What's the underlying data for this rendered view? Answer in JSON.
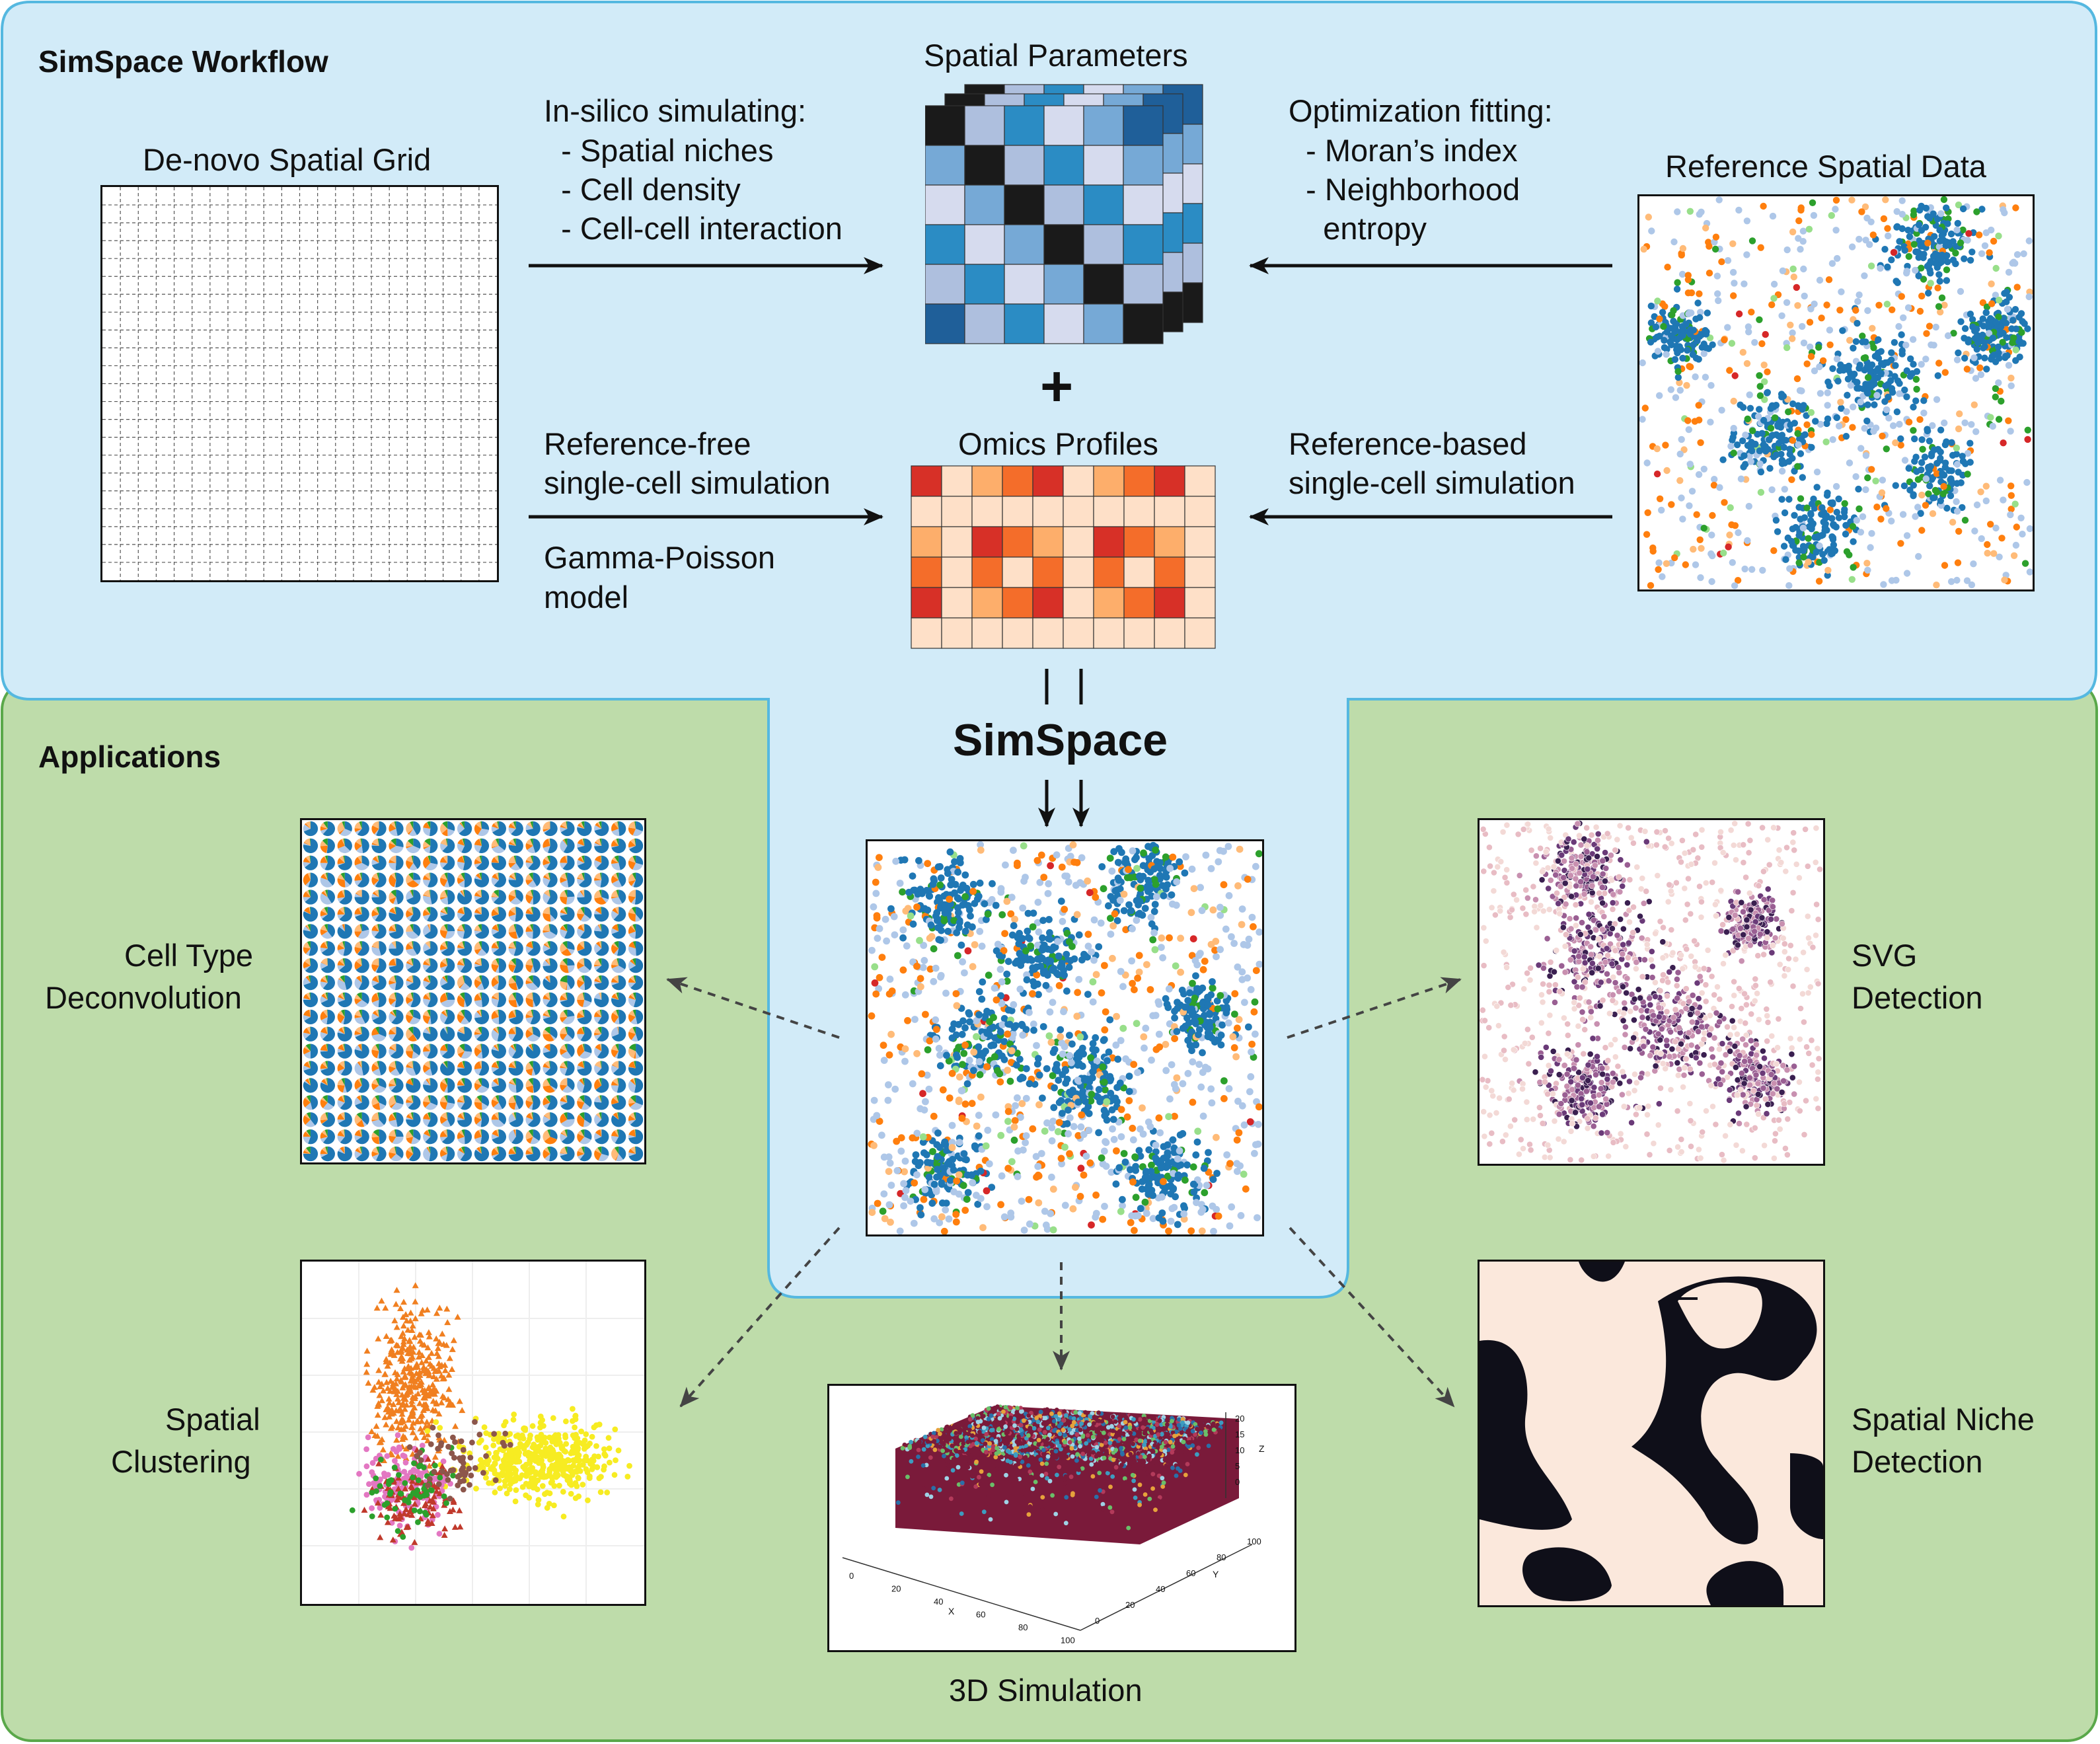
{
  "workflow": {
    "title": "SimSpace Workflow",
    "grid_title": "De-novo Spatial Grid",
    "spatial_params_title": "Spatial Parameters",
    "insilico": [
      "In-silico simulating:",
      "  - Spatial niches",
      "  - Cell density",
      "  - Cell-cell interaction"
    ],
    "optimization": [
      "Optimization fitting:",
      "  - Moran’s index",
      "  - Neighborhood",
      "    entropy"
    ],
    "reference_title": "Reference Spatial Data",
    "plus": "+",
    "omics_title": "Omics Profiles",
    "ref_free": [
      "Reference-free",
      "single-cell simulation"
    ],
    "gamma": [
      "Gamma-Poisson",
      "model"
    ],
    "ref_based": [
      "Reference-based",
      "single-cell simulation"
    ],
    "center_title": "SimSpace"
  },
  "applications": {
    "title": "Applications",
    "deconv": [
      "Cell Type",
      "Deconvolution"
    ],
    "svg": [
      "SVG",
      "Detection"
    ],
    "clustering": [
      "Spatial",
      "Clustering"
    ],
    "niche": [
      "Spatial Niche",
      "Detection"
    ],
    "sim3d": "3D Simulation"
  },
  "axes3d": {
    "x_label": "X",
    "y_label": "Y",
    "z_label": "Z",
    "x_ticks": [
      "0",
      "20",
      "40",
      "60",
      "80",
      "100"
    ],
    "y_ticks": [
      "0",
      "20",
      "40",
      "60",
      "80",
      "100"
    ],
    "z_ticks": [
      "0",
      "5",
      "10",
      "15",
      "20"
    ]
  },
  "colors": {
    "workflow_bg": "#d2ebf8",
    "workflow_border": "#55b8e0",
    "apps_bg": "#bedcaa",
    "apps_border": "#5aa84a",
    "blues": [
      "#1a1a1a",
      "#1f5f99",
      "#2b8cc4",
      "#76a9d6",
      "#aebfde",
      "#d6dbee"
    ],
    "oranges": [
      "#d73027",
      "#f46d2a",
      "#fdae6b",
      "#fee0c8"
    ],
    "cell_types": [
      "#1f77b4",
      "#aec7e8",
      "#ff7f0e",
      "#ffbb78",
      "#2ca02c",
      "#98df8a",
      "#d62728"
    ]
  }
}
